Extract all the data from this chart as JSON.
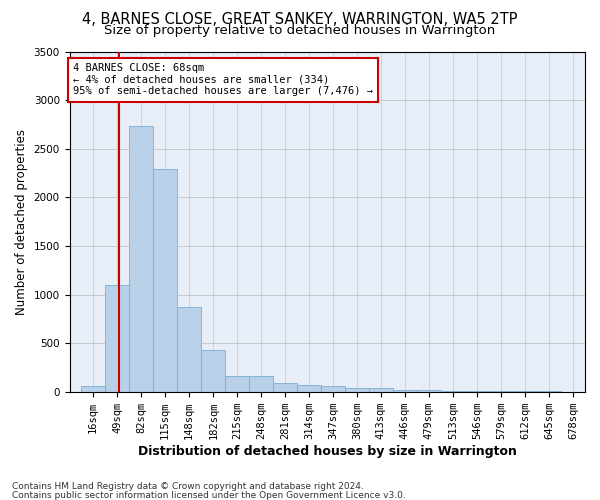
{
  "title_line1": "4, BARNES CLOSE, GREAT SANKEY, WARRINGTON, WA5 2TP",
  "title_line2": "Size of property relative to detached houses in Warrington",
  "xlabel": "Distribution of detached houses by size in Warrington",
  "ylabel": "Number of detached properties",
  "footer_line1": "Contains HM Land Registry data © Crown copyright and database right 2024.",
  "footer_line2": "Contains public sector information licensed under the Open Government Licence v3.0.",
  "annotation_title": "4 BARNES CLOSE: 68sqm",
  "annotation_line1": "← 4% of detached houses are smaller (334)",
  "annotation_line2": "95% of semi-detached houses are larger (7,476) →",
  "property_size_sqm": 68,
  "bins": [
    16,
    49,
    82,
    115,
    148,
    182,
    215,
    248,
    281,
    314,
    347,
    380,
    413,
    446,
    479,
    513,
    546,
    579,
    612,
    645,
    678
  ],
  "bar_heights": [
    55,
    1100,
    2730,
    2290,
    870,
    430,
    165,
    165,
    90,
    65,
    55,
    40,
    35,
    15,
    15,
    5,
    5,
    5,
    5,
    5
  ],
  "bar_color": "#b8d0e8",
  "bar_edge_color": "#7aadd4",
  "vline_color": "#cc0000",
  "vline_x": 68,
  "ylim": [
    0,
    3500
  ],
  "annotation_box_color": "#cc0000",
  "annotation_fill": "white",
  "bg_color": "#e8eef8",
  "grid_color": "#c8c8c8",
  "title1_fontsize": 10.5,
  "title2_fontsize": 9.5,
  "xlabel_fontsize": 9,
  "ylabel_fontsize": 8.5,
  "tick_fontsize": 7.5,
  "annotation_fontsize": 7.5,
  "footer_fontsize": 6.5
}
